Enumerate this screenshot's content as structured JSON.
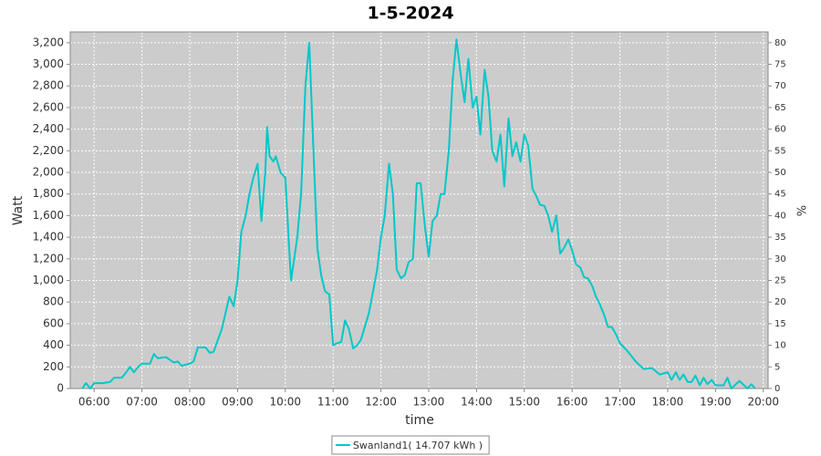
{
  "chart_data": {
    "type": "line",
    "title": "1-5-2024",
    "xlabel": "time",
    "ylabel": "Watt",
    "y2label": "%",
    "series": [
      {
        "name": "Swanland1( 14.707 kWh )",
        "color": "#00c8c8",
        "x": [
          5.75,
          5.83,
          5.92,
          6.0,
          6.17,
          6.33,
          6.42,
          6.58,
          6.67,
          6.75,
          6.83,
          6.92,
          7.0,
          7.17,
          7.25,
          7.33,
          7.5,
          7.67,
          7.75,
          7.83,
          8.0,
          8.08,
          8.17,
          8.33,
          8.42,
          8.5,
          8.67,
          8.83,
          8.92,
          9.0,
          9.08,
          9.17,
          9.25,
          9.33,
          9.42,
          9.5,
          9.58,
          9.62,
          9.67,
          9.75,
          9.8,
          9.9,
          10.0,
          10.08,
          10.12,
          10.25,
          10.33,
          10.42,
          10.5,
          10.58,
          10.67,
          10.75,
          10.83,
          10.92,
          11.0,
          11.08,
          11.17,
          11.25,
          11.33,
          11.42,
          11.5,
          11.58,
          11.75,
          11.92,
          12.0,
          12.08,
          12.17,
          12.25,
          12.33,
          12.42,
          12.5,
          12.58,
          12.67,
          12.75,
          12.83,
          12.92,
          13.0,
          13.08,
          13.17,
          13.25,
          13.33,
          13.42,
          13.5,
          13.58,
          13.67,
          13.75,
          13.83,
          13.92,
          14.0,
          14.08,
          14.17,
          14.25,
          14.33,
          14.42,
          14.5,
          14.58,
          14.67,
          14.75,
          14.83,
          14.92,
          15.0,
          15.08,
          15.17,
          15.25,
          15.33,
          15.42,
          15.5,
          15.58,
          15.67,
          15.75,
          15.83,
          15.92,
          16.0,
          16.08,
          16.17,
          16.25,
          16.33,
          16.42,
          16.5,
          16.58,
          16.67,
          16.75,
          16.83,
          16.92,
          17.0,
          17.17,
          17.33,
          17.5,
          17.67,
          17.83,
          18.0,
          18.08,
          18.17,
          18.25,
          18.33,
          18.42,
          18.5,
          18.58,
          18.67,
          18.75,
          18.83,
          18.92,
          19.0,
          19.17,
          19.25,
          19.33,
          19.5,
          19.67,
          19.75,
          19.83
        ],
        "values": [
          0,
          50,
          0,
          50,
          50,
          60,
          100,
          100,
          150,
          200,
          150,
          200,
          230,
          230,
          320,
          280,
          290,
          240,
          250,
          210,
          230,
          250,
          380,
          380,
          330,
          340,
          550,
          850,
          760,
          1000,
          1450,
          1600,
          1800,
          1950,
          2080,
          1550,
          2000,
          2420,
          2150,
          2100,
          2150,
          2000,
          1950,
          1300,
          1000,
          1400,
          1800,
          2800,
          3200,
          2300,
          1300,
          1050,
          900,
          870,
          400,
          420,
          430,
          630,
          550,
          370,
          400,
          450,
          700,
          1100,
          1400,
          1600,
          2080,
          1800,
          1100,
          1020,
          1050,
          1170,
          1200,
          1900,
          1900,
          1500,
          1220,
          1550,
          1600,
          1800,
          1800,
          2200,
          2850,
          3230,
          2900,
          2650,
          3050,
          2600,
          2700,
          2350,
          2950,
          2700,
          2200,
          2100,
          2350,
          1870,
          2500,
          2150,
          2280,
          2100,
          2350,
          2250,
          1850,
          1780,
          1700,
          1690,
          1600,
          1450,
          1600,
          1250,
          1300,
          1380,
          1280,
          1150,
          1120,
          1030,
          1020,
          950,
          850,
          780,
          680,
          570,
          570,
          500,
          420,
          340,
          250,
          180,
          190,
          130,
          150,
          80,
          150,
          80,
          130,
          60,
          60,
          120,
          30,
          100,
          40,
          80,
          30,
          30,
          100,
          0,
          70,
          0,
          40,
          0
        ]
      }
    ],
    "xlim": [
      5.5,
      20.1
    ],
    "xticks": [
      {
        "value": 6,
        "label": "06:00"
      },
      {
        "value": 7,
        "label": "07:00"
      },
      {
        "value": 8,
        "label": "08:00"
      },
      {
        "value": 9,
        "label": "09:00"
      },
      {
        "value": 10,
        "label": "10:00"
      },
      {
        "value": 11,
        "label": "11:00"
      },
      {
        "value": 12,
        "label": "12:00"
      },
      {
        "value": 13,
        "label": "13:00"
      },
      {
        "value": 14,
        "label": "14:00"
      },
      {
        "value": 15,
        "label": "15:00"
      },
      {
        "value": 16,
        "label": "16:00"
      },
      {
        "value": 17,
        "label": "17:00"
      },
      {
        "value": 18,
        "label": "18:00"
      },
      {
        "value": 19,
        "label": "19:00"
      },
      {
        "value": 20,
        "label": "20:00"
      }
    ],
    "ylim": [
      0,
      3300
    ],
    "yticks": [
      0,
      200,
      400,
      600,
      800,
      {
        "value": 1000,
        "label": "1,000"
      },
      {
        "value": 1200,
        "label": "1,200"
      },
      {
        "value": 1400,
        "label": "1,400"
      },
      {
        "value": 1600,
        "label": "1,600"
      },
      {
        "value": 1800,
        "label": "1,800"
      },
      {
        "value": 2000,
        "label": "2,000"
      },
      {
        "value": 2200,
        "label": "2,200"
      },
      {
        "value": 2400,
        "label": "2,400"
      },
      {
        "value": 2600,
        "label": "2,600"
      },
      {
        "value": 2800,
        "label": "2,800"
      },
      {
        "value": 3000,
        "label": "3,000"
      },
      {
        "value": 3200,
        "label": "3,200"
      }
    ],
    "y2lim": [
      0,
      82.5
    ],
    "y2ticks": [
      0,
      5,
      10,
      15,
      20,
      25,
      30,
      35,
      40,
      45,
      50,
      55,
      60,
      65,
      70,
      75,
      80
    ],
    "grid": true,
    "legend": "bottom"
  }
}
